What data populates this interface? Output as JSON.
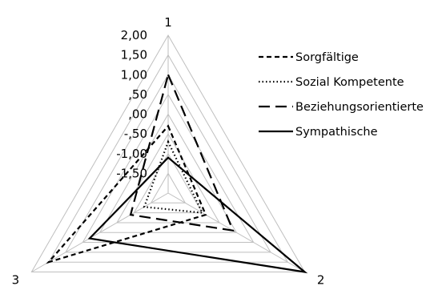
{
  "chart_data": {
    "type": "radar",
    "axes": [
      "1",
      "2",
      "3"
    ],
    "rmin": -2,
    "rmax": 2,
    "tick_step": 0.5,
    "tick_labels": [
      "2,00",
      "1,50",
      "1,00",
      ",50",
      ",00",
      "-,50",
      "-1,00",
      "-1,50"
    ],
    "legend_position": "right",
    "series": [
      {
        "name": "Sorgfältige",
        "values": [
          -0.3,
          -0.9,
          1.5
        ],
        "dash": "6,4",
        "color": "#000000"
      },
      {
        "name": "Sozial Kompetente",
        "values": [
          -0.7,
          -1.0,
          -1.3
        ],
        "dash": "1.5,3",
        "color": "#000000"
      },
      {
        "name": "Beziehungsorientierte",
        "values": [
          1.0,
          -0.1,
          -0.9
        ],
        "dash": "14,7",
        "color": "#000000"
      },
      {
        "name": "Sympathische",
        "values": [
          -1.1,
          2.0,
          0.3
        ],
        "dash": "",
        "color": "#000000"
      }
    ],
    "grid_color": "#bfbfbf"
  }
}
